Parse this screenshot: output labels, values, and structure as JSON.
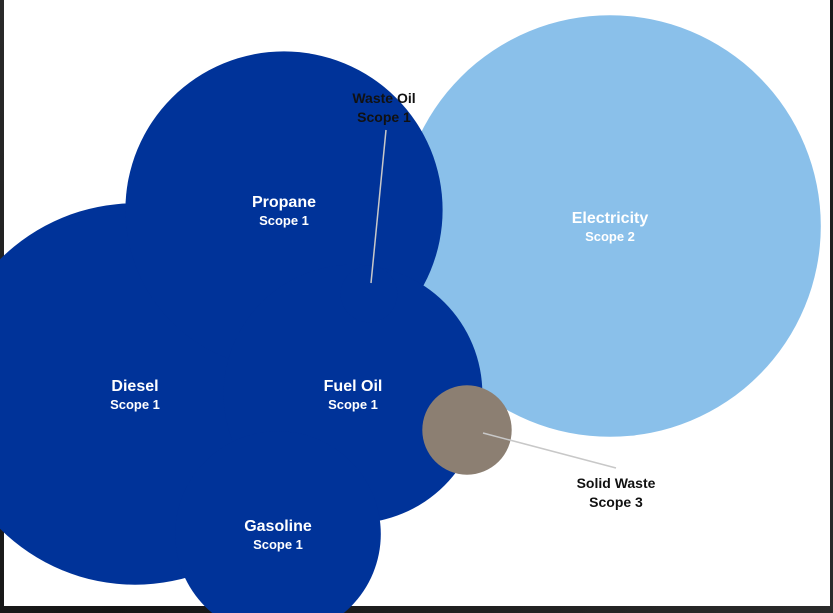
{
  "chart_data": {
    "type": "bubble",
    "colors": {
      "scope1": "#003399",
      "scope2": "#8ac0ea",
      "scope3": "#8c7f72",
      "background": "#ffffff"
    },
    "bubbles": [
      {
        "name": "Electricity",
        "scope": "Scope 2",
        "relative_area": 55.5,
        "color": "#8ac0ea"
      },
      {
        "name": "Diesel",
        "scope": "Scope 1",
        "relative_area": 45.4,
        "color": "#003399"
      },
      {
        "name": "Propane",
        "scope": "Scope 1",
        "relative_area": 31.4,
        "color": "#003399"
      },
      {
        "name": "Fuel Oil",
        "scope": "Scope 1",
        "relative_area": 20.9,
        "color": "#003399"
      },
      {
        "name": "Gasoline",
        "scope": "Scope 1",
        "relative_area": 13.2,
        "color": "#003399"
      },
      {
        "name": "Solid Waste",
        "scope": "Scope 3",
        "relative_area": 2.5,
        "color": "#8c7f72"
      },
      {
        "name": "Waste Oil",
        "scope": "Scope 1",
        "relative_area": 1.0,
        "color": "#003399"
      }
    ]
  }
}
